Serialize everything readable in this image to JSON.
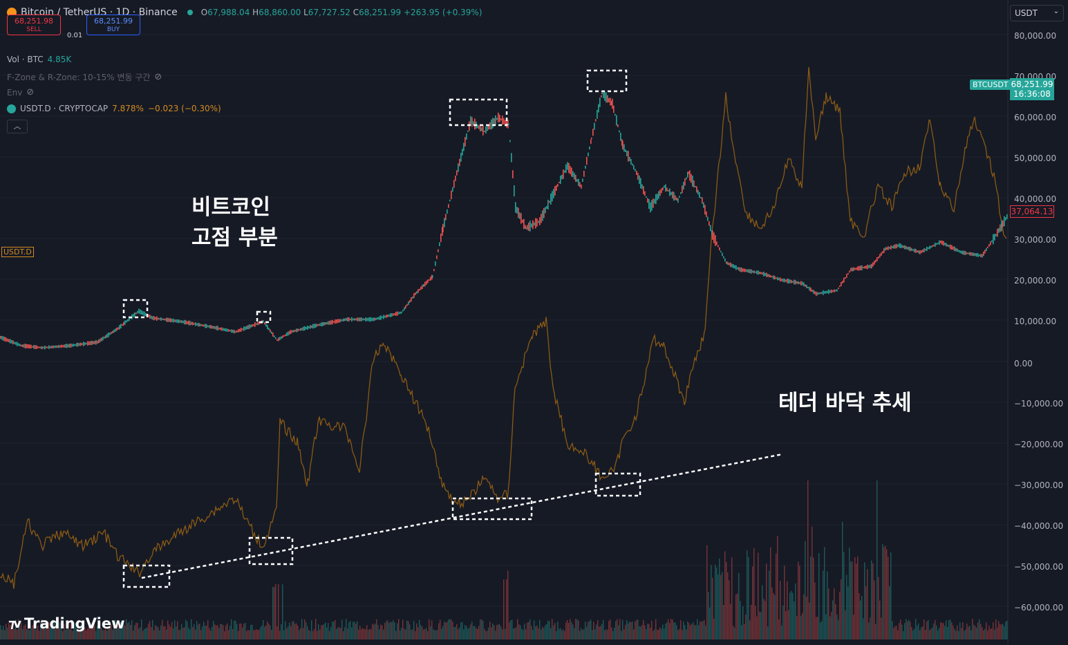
{
  "header": {
    "symbol": "Bitcoin / TetherUS · 1D · Binance",
    "open_label": "O",
    "open": "67,988.04",
    "high_label": "H",
    "high": "68,860.00",
    "low_label": "L",
    "low": "67,727.52",
    "close_label": "C",
    "close": "68,251.99",
    "change": "+263.95 (+0.39%)"
  },
  "trade": {
    "sell_price": "68,251.98",
    "sell_label": "SELL",
    "spread": "0.01",
    "buy_price": "68,251.99",
    "buy_label": "BUY"
  },
  "indicators": {
    "vol_label": "Vol · BTC",
    "vol_value": "4.85K",
    "fzone": "F-Zone & R-Zone: 10-15% 변동 구간",
    "env": "Env",
    "usdtd_label": "USDT.D · CRYPTOCAP",
    "usdtd_value": "7.878%",
    "usdtd_change": "−0.023 (−0.30%)"
  },
  "collapse_icon": "chevron-up",
  "currency_select": "USDT",
  "right_axis": [
    "80,000.00",
    "70,000.00",
    "60,000.00",
    "50,000.00",
    "40,000.00",
    "30,000.00",
    "20,000.00",
    "10,000.00",
    "0.00",
    "−10,000.00",
    "−20,000.00",
    "−30,000.00",
    "−40,000.00",
    "−50,000.00",
    "−60,000.00"
  ],
  "btc_tag": "BTCUSDT",
  "btc_price": "68,251.99",
  "btc_countdown": "16:36:08",
  "usdt_price": "37,064.13",
  "usdtd_left_tag": "USDT.D",
  "annotations": {
    "btc_top_line1": "비트코인",
    "btc_top_line2": "고점 부분",
    "tether_bottom": "테더 바닥 추세"
  },
  "logo": "TradingView",
  "colors": {
    "background": "#161a25",
    "up": "#26a69a",
    "down": "#ef5350",
    "usdtd": "#d38b1f",
    "annotation": "#ffffff"
  }
}
